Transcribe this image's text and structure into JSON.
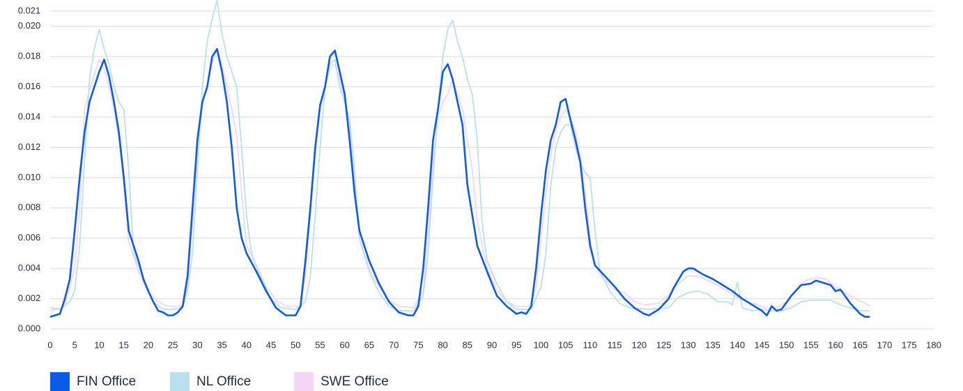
{
  "chart_data": {
    "type": "line",
    "xlim": [
      0,
      180
    ],
    "xticks": [
      0,
      5,
      10,
      15,
      20,
      25,
      30,
      35,
      40,
      45,
      50,
      55,
      60,
      65,
      70,
      75,
      80,
      85,
      90,
      95,
      100,
      105,
      110,
      115,
      120,
      125,
      130,
      135,
      140,
      145,
      150,
      155,
      160,
      165,
      170,
      175,
      180
    ],
    "ylim": [
      0,
      0.021
    ],
    "yticks": [
      {
        "value": 0,
        "label": "0.000"
      },
      {
        "value": 0.002,
        "label": "0.002"
      },
      {
        "value": 0.004,
        "label": "0.004"
      },
      {
        "value": 0.006,
        "label": "0.006"
      },
      {
        "value": 0.008,
        "label": "0.008"
      },
      {
        "value": 0.01,
        "label": "0.010"
      },
      {
        "value": 0.012,
        "label": "0.012"
      },
      {
        "value": 0.014,
        "label": "0.014"
      },
      {
        "value": 0.016,
        "label": "0.016"
      },
      {
        "value": 0.018,
        "label": "0.018"
      },
      {
        "value": 0.02,
        "label": "0.020"
      },
      {
        "value": 0.021,
        "label": "0.021"
      }
    ],
    "grid": true,
    "legend": "bottom-left",
    "series": [
      {
        "name": "FIN Office",
        "color": "#0a5ce8",
        "x": [
          0,
          2,
          3,
          4,
          5,
          6,
          7,
          8,
          9,
          10,
          11,
          12,
          13,
          14,
          15,
          16,
          17,
          18,
          19,
          20,
          21,
          22,
          23,
          24,
          25,
          26,
          27,
          28,
          29,
          30,
          31,
          32,
          33,
          34,
          35,
          36,
          37,
          38,
          39,
          40,
          42,
          44,
          46,
          48,
          50,
          51,
          52,
          53,
          54,
          55,
          56,
          57,
          58,
          59,
          60,
          61,
          62,
          63,
          64,
          65,
          67,
          69,
          71,
          73,
          74,
          75,
          76,
          77,
          78,
          79,
          80,
          81,
          82,
          84,
          85,
          87,
          89,
          91,
          93,
          95,
          96,
          97,
          98,
          99,
          100,
          101,
          102,
          103,
          104,
          105,
          106,
          107,
          108,
          109,
          110,
          111,
          113,
          115,
          117,
          119,
          121,
          122,
          124,
          126,
          127,
          129,
          130,
          131,
          132,
          133,
          135,
          137,
          139,
          141,
          143,
          145,
          146,
          147,
          148,
          149,
          151,
          153,
          155,
          156,
          158,
          159,
          160,
          161,
          163,
          165,
          166,
          167
        ],
        "values": [
          0.0008,
          0.001,
          0.002,
          0.0033,
          0.0065,
          0.01,
          0.013,
          0.015,
          0.016,
          0.017,
          0.0178,
          0.0167,
          0.015,
          0.013,
          0.01,
          0.0065,
          0.0055,
          0.0045,
          0.0033,
          0.0025,
          0.0018,
          0.0012,
          0.0011,
          0.0009,
          0.0009,
          0.0011,
          0.0015,
          0.0035,
          0.008,
          0.0125,
          0.015,
          0.016,
          0.018,
          0.0185,
          0.017,
          0.015,
          0.012,
          0.008,
          0.006,
          0.005,
          0.0038,
          0.0025,
          0.0014,
          0.0009,
          0.0009,
          0.0015,
          0.0045,
          0.008,
          0.012,
          0.0148,
          0.016,
          0.018,
          0.0184,
          0.017,
          0.0155,
          0.0125,
          0.009,
          0.0065,
          0.0055,
          0.0045,
          0.003,
          0.0018,
          0.0011,
          0.0009,
          0.0009,
          0.0015,
          0.004,
          0.008,
          0.0125,
          0.0145,
          0.017,
          0.0175,
          0.0165,
          0.0135,
          0.0095,
          0.0055,
          0.0038,
          0.0022,
          0.0015,
          0.001,
          0.0011,
          0.001,
          0.0015,
          0.004,
          0.0075,
          0.0105,
          0.0125,
          0.0135,
          0.015,
          0.0152,
          0.0138,
          0.0125,
          0.011,
          0.008,
          0.0055,
          0.0042,
          0.0035,
          0.0028,
          0.002,
          0.0014,
          0.001,
          0.0009,
          0.0013,
          0.002,
          0.0027,
          0.0038,
          0.004,
          0.004,
          0.0038,
          0.0036,
          0.0033,
          0.0029,
          0.0025,
          0.002,
          0.0016,
          0.0012,
          0.0009,
          0.0015,
          0.0012,
          0.0013,
          0.0022,
          0.0029,
          0.003,
          0.0032,
          0.003,
          0.0029,
          0.0025,
          0.0026,
          0.0017,
          0.001,
          0.0008,
          0.0008
        ]
      },
      {
        "name": "NL Office",
        "color": "#b9e0f0",
        "x": [
          0,
          2,
          4,
          5,
          6,
          7,
          8,
          9,
          10,
          11,
          12,
          13,
          14,
          15,
          16,
          17,
          19,
          21,
          23,
          25,
          27,
          28,
          29,
          30,
          31,
          32,
          33,
          34,
          35,
          36,
          37,
          38,
          39,
          40,
          41,
          43,
          45,
          47,
          50,
          52,
          53,
          54,
          55,
          56,
          57,
          58,
          59,
          60,
          61,
          62,
          63,
          65,
          67,
          69,
          71,
          74,
          76,
          77,
          78,
          79,
          80,
          81,
          82,
          83,
          84,
          85,
          86,
          87,
          88,
          89,
          91,
          93,
          95,
          98,
          100,
          101,
          102,
          103,
          104,
          105,
          106,
          107,
          108,
          109,
          110,
          111,
          112,
          114,
          116,
          118,
          122,
          126,
          128,
          130,
          132,
          134,
          136,
          138,
          139,
          140,
          141,
          143,
          145,
          147,
          149,
          151,
          153,
          155,
          157,
          159,
          161,
          163,
          165,
          167
        ],
        "values": [
          0.0014,
          0.0013,
          0.0018,
          0.0025,
          0.0055,
          0.011,
          0.0165,
          0.0185,
          0.0198,
          0.0185,
          0.0175,
          0.016,
          0.015,
          0.0145,
          0.0105,
          0.005,
          0.0033,
          0.0018,
          0.0013,
          0.0013,
          0.0014,
          0.0025,
          0.005,
          0.0105,
          0.016,
          0.019,
          0.0205,
          0.0217,
          0.0195,
          0.018,
          0.017,
          0.016,
          0.012,
          0.0075,
          0.005,
          0.0033,
          0.002,
          0.0014,
          0.0013,
          0.0018,
          0.0035,
          0.0075,
          0.012,
          0.016,
          0.0175,
          0.0178,
          0.016,
          0.015,
          0.0138,
          0.0105,
          0.006,
          0.0038,
          0.0024,
          0.0015,
          0.0012,
          0.0012,
          0.0022,
          0.005,
          0.01,
          0.0145,
          0.018,
          0.0198,
          0.0204,
          0.019,
          0.018,
          0.0165,
          0.0155,
          0.0125,
          0.007,
          0.0045,
          0.003,
          0.0018,
          0.0013,
          0.0013,
          0.0028,
          0.005,
          0.0095,
          0.012,
          0.013,
          0.0135,
          0.0135,
          0.012,
          0.011,
          0.0103,
          0.01,
          0.0065,
          0.0038,
          0.0025,
          0.0017,
          0.0014,
          0.0013,
          0.0014,
          0.0021,
          0.0024,
          0.0025,
          0.0023,
          0.0018,
          0.0018,
          0.0016,
          0.0031,
          0.0014,
          0.0012,
          0.0013,
          0.0012,
          0.0012,
          0.0014,
          0.0018,
          0.0019,
          0.0019,
          0.0019,
          0.0016,
          0.0014,
          0.0012,
          0.0012
        ]
      },
      {
        "name": "SWE Office",
        "color": "#f5d5f5",
        "x": [
          0,
          3,
          5,
          6,
          7,
          8,
          9,
          10,
          11,
          12,
          13,
          14,
          15,
          16,
          18,
          20,
          22,
          24,
          27,
          28,
          29,
          30,
          31,
          32,
          33,
          34,
          35,
          36,
          37,
          38,
          39,
          40,
          42,
          44,
          46,
          48,
          51,
          52,
          53,
          54,
          55,
          56,
          57,
          58,
          59,
          60,
          61,
          62,
          63,
          65,
          67,
          69,
          71,
          74,
          76,
          77,
          78,
          79,
          80,
          81,
          82,
          83,
          84,
          85,
          86,
          87,
          89,
          91,
          93,
          95,
          98,
          99,
          100,
          101,
          102,
          103,
          104,
          105,
          106,
          107,
          108,
          109,
          110,
          111,
          113,
          115,
          117,
          119,
          121,
          124,
          126,
          128,
          130,
          132,
          134,
          136,
          138,
          140,
          142,
          144,
          146,
          148,
          150,
          152,
          154,
          156,
          158,
          160,
          162,
          164,
          166,
          167
        ],
        "values": [
          0.0012,
          0.0015,
          0.004,
          0.008,
          0.0145,
          0.0158,
          0.0168,
          0.0178,
          0.0172,
          0.016,
          0.0145,
          0.0125,
          0.0095,
          0.0058,
          0.0038,
          0.0024,
          0.0018,
          0.0015,
          0.0015,
          0.0028,
          0.007,
          0.0115,
          0.015,
          0.016,
          0.0175,
          0.0185,
          0.0175,
          0.016,
          0.0145,
          0.0128,
          0.009,
          0.0055,
          0.0042,
          0.0028,
          0.0019,
          0.0015,
          0.0015,
          0.0035,
          0.0075,
          0.0115,
          0.0145,
          0.016,
          0.0172,
          0.0175,
          0.0165,
          0.0152,
          0.0135,
          0.01,
          0.006,
          0.004,
          0.0028,
          0.0019,
          0.0015,
          0.0014,
          0.0025,
          0.0065,
          0.011,
          0.014,
          0.015,
          0.0155,
          0.0165,
          0.0155,
          0.0145,
          0.0125,
          0.0105,
          0.0072,
          0.004,
          0.0026,
          0.0018,
          0.0015,
          0.0015,
          0.0028,
          0.006,
          0.009,
          0.0115,
          0.0132,
          0.014,
          0.0145,
          0.014,
          0.013,
          0.0115,
          0.009,
          0.006,
          0.0042,
          0.0032,
          0.0026,
          0.0024,
          0.0018,
          0.0016,
          0.0017,
          0.0022,
          0.003,
          0.0035,
          0.0035,
          0.0032,
          0.0029,
          0.0025,
          0.0021,
          0.0018,
          0.0016,
          0.0014,
          0.0014,
          0.0018,
          0.0026,
          0.0032,
          0.0034,
          0.0033,
          0.0028,
          0.0024,
          0.002,
          0.0017,
          0.0015
        ]
      }
    ]
  }
}
